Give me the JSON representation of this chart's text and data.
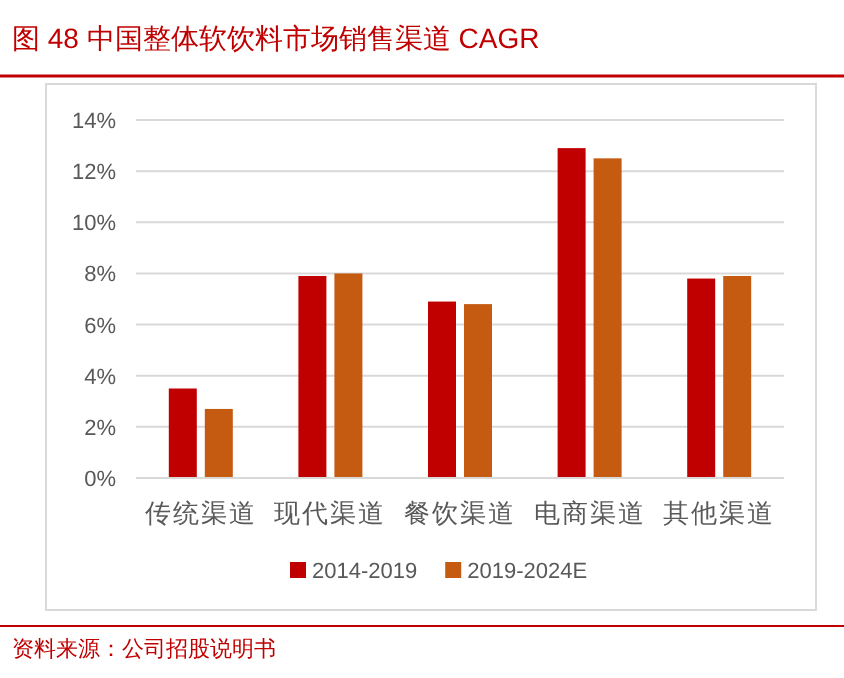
{
  "chart_data": {
    "type": "bar",
    "title": "图 48    中国整体软饮料市场销售渠道 CAGR",
    "categories": [
      "传统渠道",
      "现代渠道",
      "餐饮渠道",
      "电商渠道",
      "其他渠道"
    ],
    "series": [
      {
        "name": "2014-2019",
        "color": "#c00000",
        "values": [
          3.5,
          7.9,
          6.9,
          12.9,
          7.8
        ]
      },
      {
        "name": "2019-2024E",
        "color": "#c55a11",
        "values": [
          2.7,
          8.0,
          6.8,
          12.5,
          7.9
        ]
      }
    ],
    "ylim": [
      0,
      14
    ],
    "yticks": [
      {
        "value": 0,
        "label": "0%"
      },
      {
        "value": 2,
        "label": "2%"
      },
      {
        "value": 4,
        "label": "4%"
      },
      {
        "value": 6,
        "label": "6%"
      },
      {
        "value": 8,
        "label": "8%"
      },
      {
        "value": 10,
        "label": "10%"
      },
      {
        "value": 12,
        "label": "12%"
      },
      {
        "value": 14,
        "label": "14%"
      }
    ],
    "grid": "y",
    "legend": "bottom",
    "annotations": [
      "资料来源：公司招股说明书"
    ]
  }
}
